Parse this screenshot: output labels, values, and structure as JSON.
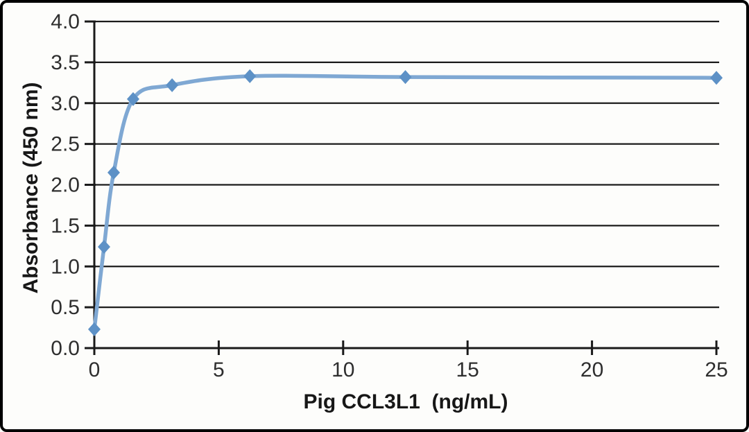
{
  "frame": {
    "background": "#fdfdfb",
    "border_color": "#000000"
  },
  "chart_data": {
    "type": "line",
    "title": "",
    "xlabel": "Pig CCL3L1  (ng/mL)",
    "ylabel": "Absorbance (450 nm)",
    "x": [
      0,
      0.39,
      0.78,
      1.56,
      3.125,
      6.25,
      12.5,
      25
    ],
    "values": [
      0.23,
      1.24,
      2.15,
      3.05,
      3.22,
      3.33,
      3.32,
      3.31
    ],
    "xlim": [
      0,
      25
    ],
    "ylim": [
      0.0,
      4.0
    ],
    "x_tick_values": [
      0,
      5,
      10,
      15,
      20,
      25
    ],
    "x_tick_labels": [
      "0",
      "5",
      "10",
      "15",
      "20",
      "25"
    ],
    "y_tick_values": [
      0,
      0.5,
      1,
      1.5,
      2,
      2.5,
      3,
      3.5,
      4
    ],
    "y_tick_labels": [
      "0.0",
      "0.5",
      "1.0",
      "1.5",
      "2.0",
      "2.5",
      "3.0",
      "3.5",
      "4.0"
    ],
    "grid": "horizontal",
    "legend": "none",
    "marker": "diamond",
    "smooth_line": true,
    "colors": {
      "line": "#7FA8D3",
      "marker": "#5D91C6",
      "axis": "#1a1a1a",
      "gridline": "#1b1b1b",
      "tick_text": "#2e2e2e",
      "title_text": "#171717"
    }
  }
}
